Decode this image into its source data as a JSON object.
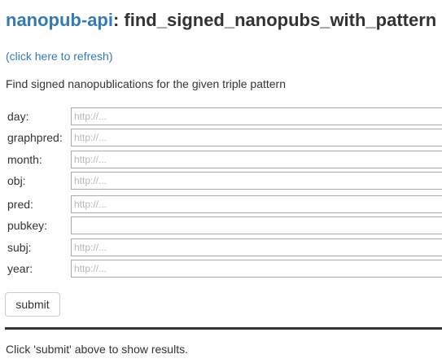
{
  "header": {
    "api_link": "nanopub-api",
    "separator": ":",
    "endpoint": " find_signed_nanopubs_with_pattern"
  },
  "refresh_link": "(click here to refresh)",
  "description": "Find signed nanopublications for the given triple pattern",
  "form": {
    "fields": [
      {
        "name": "day",
        "label": "day:",
        "placeholder": "http://...",
        "value": ""
      },
      {
        "name": "graphpred",
        "label": "graphpred:",
        "placeholder": "http://...",
        "value": ""
      },
      {
        "name": "month",
        "label": "month:",
        "placeholder": "http://...",
        "value": ""
      },
      {
        "name": "obj",
        "label": "obj:",
        "placeholder": "http://...",
        "value": ""
      },
      {
        "name": "pred",
        "label": "pred:",
        "placeholder": "http://...",
        "value": ""
      },
      {
        "name": "pubkey",
        "label": "pubkey:",
        "placeholder": "",
        "value": ""
      },
      {
        "name": "subj",
        "label": "subj:",
        "placeholder": "http://...",
        "value": ""
      },
      {
        "name": "year",
        "label": "year:",
        "placeholder": "http://...",
        "value": ""
      }
    ],
    "submit_label": "submit"
  },
  "result_text": "Click 'submit' above to show results.",
  "colors": {
    "link": "#337ab7",
    "text": "#333333",
    "placeholder": "#b8b8b8"
  }
}
